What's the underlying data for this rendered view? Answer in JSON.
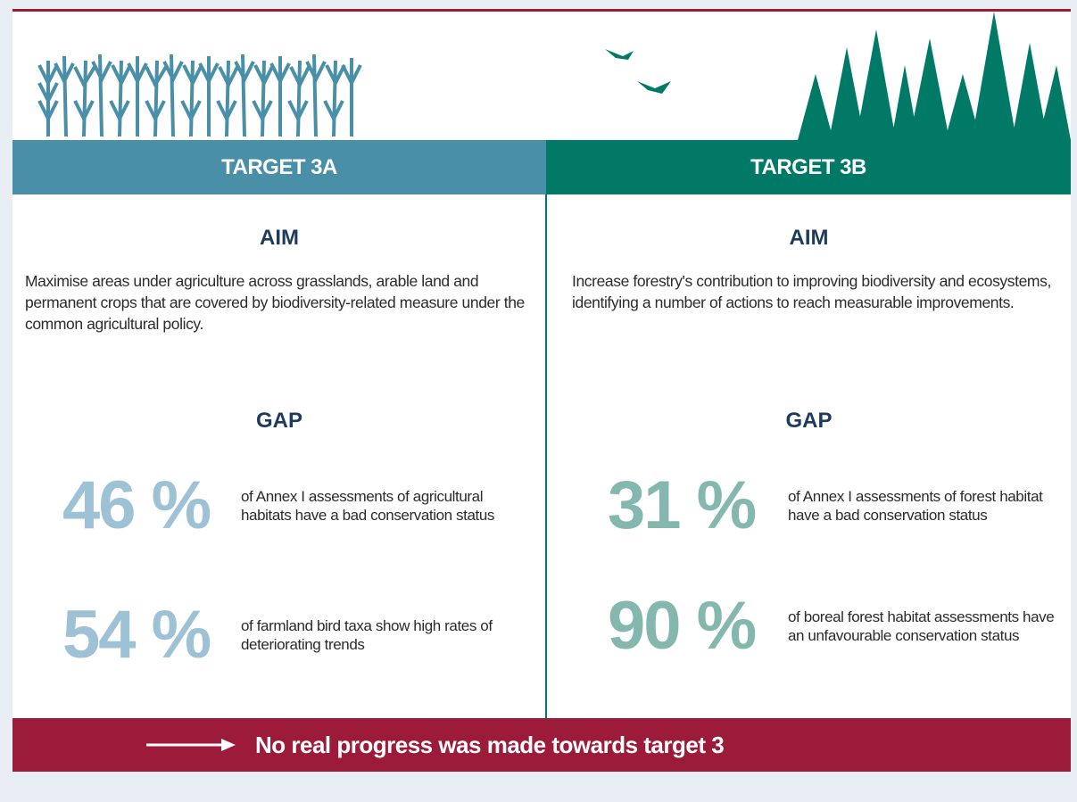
{
  "header": {
    "left": "TARGET 3A",
    "right": "TARGET 3B"
  },
  "columns": [
    {
      "aim_heading": "AIM",
      "aim": "Maximise areas under agriculture across grasslands, arable land and permanent crops that are covered by biodiversity-related measure under the common agricultural policy.",
      "gap_heading": "GAP",
      "stats": [
        {
          "value": "46 %",
          "text": "of Annex I assessments of agricultural habitats have a bad conservation status"
        },
        {
          "value": "54 %",
          "text": "of farmland bird taxa show high rates of deteriorating trends"
        }
      ]
    },
    {
      "aim_heading": "AIM",
      "aim": "Increase forestry's contribution to improving biodiversity and ecosystems, identifying a number of actions to reach measurable improvements.",
      "gap_heading": "GAP",
      "stats": [
        {
          "value": "31 %",
          "text": "of Annex I assessments of forest habitat have a bad conservation status"
        },
        {
          "value": "90 %",
          "text": "of boreal forest habitat assessments have an unfavourable conservation status"
        }
      ]
    }
  ],
  "footer": "No real progress was made towards target 3"
}
